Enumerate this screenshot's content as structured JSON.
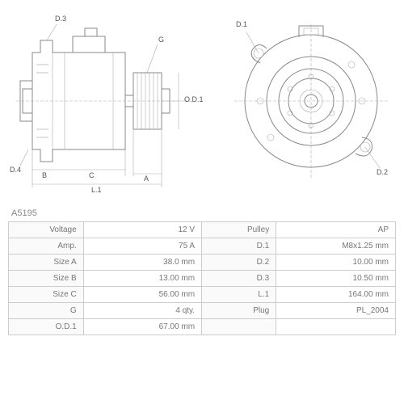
{
  "part_number": "A5195",
  "diagram": {
    "type": "engineering-drawing",
    "views": [
      "side",
      "front"
    ],
    "labels": {
      "d1": "D.1",
      "d2": "D.2",
      "d3": "D.3",
      "d4": "D.4",
      "g": "G",
      "od1": "O.D.1",
      "a": "A",
      "b": "B",
      "c": "C",
      "l1": "L.1"
    },
    "stroke_color": "#888888",
    "thin_stroke_color": "#aaaaaa",
    "background": "#ffffff"
  },
  "specs": {
    "left": [
      {
        "label": "Voltage",
        "value": "12 V"
      },
      {
        "label": "Amp.",
        "value": "75 A"
      },
      {
        "label": "Size A",
        "value": "38.0 mm"
      },
      {
        "label": "Size B",
        "value": "13.00 mm"
      },
      {
        "label": "Size C",
        "value": "56.00 mm"
      },
      {
        "label": "G",
        "value": "4 qty."
      },
      {
        "label": "O.D.1",
        "value": "67.00 mm"
      }
    ],
    "right": [
      {
        "label": "Pulley",
        "value": "AP"
      },
      {
        "label": "D.1",
        "value": "M8x1.25 mm"
      },
      {
        "label": "D.2",
        "value": "10.00 mm"
      },
      {
        "label": "D.3",
        "value": "10.50 mm"
      },
      {
        "label": "L.1",
        "value": "164.00 mm"
      },
      {
        "label": "Plug",
        "value": "PL_2004"
      }
    ]
  },
  "table_style": {
    "border_color": "#cccccc",
    "label_bg": "#fafafa",
    "text_color": "#777777",
    "font_size": 10
  }
}
